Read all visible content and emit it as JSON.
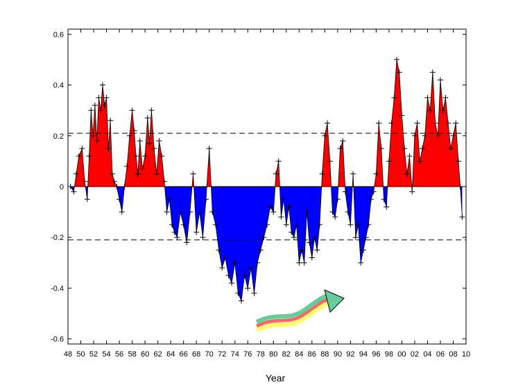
{
  "chart_data": {
    "type": "area",
    "title": "",
    "xlabel": "Year",
    "ylabel": "",
    "xlim": [
      1948,
      2010
    ],
    "ylim": [
      -0.62,
      0.62
    ],
    "xtick_labels": [
      "48",
      "50",
      "52",
      "54",
      "56",
      "58",
      "60",
      "62",
      "64",
      "66",
      "68",
      "70",
      "72",
      "74",
      "76",
      "78",
      "80",
      "82",
      "84",
      "86",
      "88",
      "90",
      "92",
      "94",
      "96",
      "98",
      "00",
      "02",
      "04",
      "06",
      "08",
      "10"
    ],
    "xtick_values": [
      1948,
      1950,
      1952,
      1954,
      1956,
      1958,
      1960,
      1962,
      1964,
      1966,
      1968,
      1970,
      1972,
      1974,
      1976,
      1978,
      1980,
      1982,
      1984,
      1986,
      1988,
      1990,
      1992,
      1994,
      1996,
      1998,
      2000,
      2002,
      2004,
      2006,
      2008,
      2010
    ],
    "ytick_labels": [
      "-0.6",
      "-0.4",
      "-0.2",
      "0",
      "0.2",
      "0.4",
      "0.6"
    ],
    "ytick_values": [
      -0.6,
      -0.4,
      -0.2,
      0,
      0.2,
      0.4,
      0.6
    ],
    "threshold_lines": [
      0.21,
      -0.21
    ],
    "positive_color": "#ff0000",
    "negative_color": "#0000ff",
    "marker": "+",
    "grid": false,
    "series": [
      {
        "x": [
          1948.4,
          1948.9,
          1949.3,
          1949.7,
          1950.2,
          1950.6,
          1951.0,
          1951.3,
          1951.6,
          1951.9,
          1952.2,
          1952.5,
          1952.8,
          1953.1,
          1953.4,
          1953.7,
          1954.0,
          1954.3,
          1954.6,
          1954.9,
          1955.2,
          1955.6,
          1956.0,
          1956.4,
          1956.8,
          1957.2,
          1957.6,
          1958.0,
          1958.3,
          1958.6,
          1958.9,
          1959.2,
          1959.6,
          1960.0,
          1960.4,
          1960.7,
          1961.0,
          1961.4,
          1961.8,
          1962.2,
          1962.6,
          1963.0,
          1963.4,
          1963.8,
          1964.2,
          1964.6,
          1965.0,
          1965.5,
          1966.0,
          1966.5,
          1967.0,
          1967.5,
          1968.0,
          1968.5,
          1969.0,
          1969.5,
          1970.0,
          1970.5,
          1971.0,
          1971.5,
          1972.0,
          1972.5,
          1973.0,
          1973.5,
          1974.0,
          1974.5,
          1975.0,
          1975.5,
          1976.0,
          1976.5,
          1977.0,
          1977.5,
          1978.0,
          1978.5,
          1979.0,
          1979.5,
          1980.0,
          1980.4,
          1980.8,
          1981.2,
          1981.6,
          1982.0,
          1982.4,
          1982.8,
          1983.2,
          1983.6,
          1984.0,
          1984.4,
          1984.8,
          1985.2,
          1985.6,
          1986.0,
          1986.4,
          1986.8,
          1987.2,
          1987.6,
          1988.0,
          1988.4,
          1988.8,
          1989.2,
          1989.6,
          1990.0,
          1990.4,
          1990.8,
          1991.2,
          1991.6,
          1992.0,
          1992.4,
          1992.8,
          1993.2,
          1993.6,
          1994.0,
          1994.4,
          1994.8,
          1995.2,
          1995.6,
          1996.0,
          1996.4,
          1996.8,
          1997.2,
          1997.6,
          1998.0,
          1998.4,
          1998.8,
          1999.2,
          1999.6,
          2000.0,
          2000.4,
          2000.8,
          2001.2,
          2001.6,
          2002.0,
          2002.4,
          2002.8,
          2003.2,
          2003.6,
          2004.0,
          2004.4,
          2004.8,
          2005.2,
          2005.6,
          2006.0,
          2006.4,
          2006.8,
          2007.2,
          2007.6,
          2008.0,
          2008.4,
          2008.8,
          2009.1,
          2009.4
        ],
        "y": [
          0.0,
          -0.02,
          0.05,
          0.12,
          0.15,
          0.02,
          -0.05,
          0.12,
          0.3,
          0.2,
          0.32,
          0.18,
          0.35,
          0.3,
          0.4,
          0.32,
          0.35,
          0.15,
          0.26,
          0.05,
          0.02,
          0.0,
          -0.05,
          -0.1,
          0.0,
          0.08,
          0.2,
          0.3,
          0.22,
          0.12,
          0.05,
          0.18,
          0.07,
          0.12,
          0.27,
          0.17,
          0.3,
          0.15,
          0.05,
          0.18,
          0.12,
          0.02,
          -0.1,
          -0.05,
          -0.15,
          -0.18,
          -0.2,
          -0.1,
          -0.15,
          -0.22,
          -0.1,
          0.05,
          -0.18,
          -0.1,
          -0.2,
          -0.05,
          0.15,
          -0.1,
          -0.15,
          -0.25,
          -0.32,
          -0.28,
          -0.35,
          -0.38,
          -0.3,
          -0.42,
          -0.45,
          -0.35,
          -0.4,
          -0.32,
          -0.42,
          -0.3,
          -0.25,
          -0.2,
          -0.15,
          -0.08,
          -0.1,
          0.05,
          0.1,
          -0.12,
          -0.05,
          -0.15,
          -0.08,
          -0.18,
          -0.2,
          -0.15,
          -0.3,
          -0.25,
          -0.3,
          -0.1,
          -0.22,
          -0.28,
          -0.2,
          -0.25,
          -0.15,
          0.05,
          0.2,
          0.25,
          0.1,
          -0.1,
          -0.12,
          -0.05,
          0.15,
          0.18,
          -0.02,
          -0.1,
          -0.15,
          0.05,
          -0.2,
          -0.15,
          -0.3,
          -0.25,
          -0.2,
          -0.15,
          -0.05,
          -0.02,
          0.05,
          0.25,
          0.15,
          -0.05,
          -0.08,
          0.1,
          0.25,
          0.35,
          0.5,
          0.45,
          0.28,
          0.15,
          0.05,
          0.12,
          -0.02,
          0.2,
          0.25,
          0.1,
          0.15,
          0.2,
          0.35,
          0.3,
          0.45,
          0.25,
          0.2,
          0.42,
          0.3,
          0.35,
          0.25,
          0.15,
          0.2,
          0.25,
          0.1,
          0.0,
          -0.12
        ]
      }
    ]
  },
  "arrow_colors": [
    "#ffff66",
    "#ff6666",
    "#66cc99"
  ]
}
